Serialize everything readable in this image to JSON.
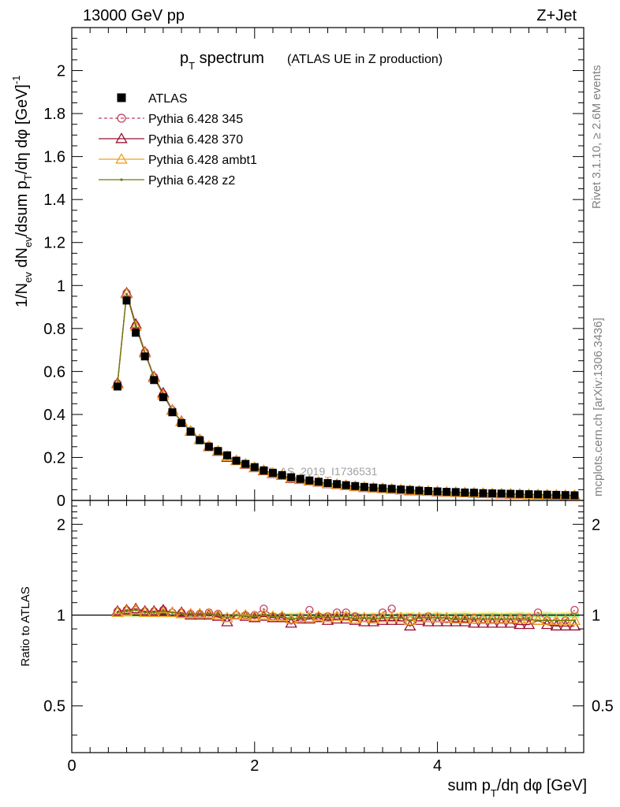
{
  "header": {
    "left": "13000 GeV pp",
    "right": "Z+Jet"
  },
  "side_text": {
    "rivet": "Rivet 3.1.10, ≥ 2.6M events",
    "mcplots": "mcplots.cern.ch [arXiv:1306.3436]"
  },
  "watermark": "ATLAS_2019_I1736531",
  "chart_data": [
    {
      "type": "scatter",
      "panel": "main",
      "title_main": "p",
      "title_sub": "T",
      "title_rest": " spectrum",
      "title_note": "(ATLAS UE in Z production)",
      "ylabel": "1/N_ev dN_ev/dsum p_T/dη dφ  [GeV]^-1",
      "xlim": [
        0,
        5.6
      ],
      "ylim": [
        0,
        2.2
      ],
      "yticks": [
        0,
        0.2,
        0.4,
        0.6,
        0.8,
        1,
        1.2,
        1.4,
        1.6,
        1.8,
        2
      ],
      "ytick_labels": [
        "0",
        "0.2",
        "0.4",
        "0.6",
        "0.8",
        "1",
        "1.2",
        "1.4",
        "1.6",
        "1.8",
        "2"
      ],
      "legend_position": "top-left",
      "x": [
        0.5,
        0.6,
        0.7,
        0.8,
        0.9,
        1.0,
        1.1,
        1.2,
        1.3,
        1.4,
        1.5,
        1.6,
        1.7,
        1.8,
        1.9,
        2.0,
        2.1,
        2.2,
        2.3,
        2.4,
        2.5,
        2.6,
        2.7,
        2.8,
        2.9,
        3.0,
        3.1,
        3.2,
        3.3,
        3.4,
        3.5,
        3.6,
        3.7,
        3.8,
        3.9,
        4.0,
        4.1,
        4.2,
        4.3,
        4.4,
        4.5,
        4.6,
        4.7,
        4.8,
        4.9,
        5.0,
        5.1,
        5.2,
        5.3,
        5.4,
        5.5
      ],
      "series": [
        {
          "name": "ATLAS",
          "color": "#000000",
          "marker": "square",
          "values": [
            0.53,
            0.93,
            0.78,
            0.67,
            0.56,
            0.48,
            0.41,
            0.36,
            0.32,
            0.28,
            0.25,
            0.23,
            0.21,
            0.185,
            0.17,
            0.155,
            0.14,
            0.128,
            0.118,
            0.108,
            0.1,
            0.093,
            0.087,
            0.081,
            0.076,
            0.071,
            0.067,
            0.063,
            0.06,
            0.057,
            0.054,
            0.051,
            0.049,
            0.046,
            0.044,
            0.042,
            0.04,
            0.039,
            0.037,
            0.036,
            0.034,
            0.033,
            0.032,
            0.031,
            0.03,
            0.029,
            0.028,
            0.027,
            0.026,
            0.025,
            0.024
          ]
        },
        {
          "name": "Pythia 6.428 345",
          "color": "#c0405a",
          "marker": "open-circle",
          "line": "dashed",
          "values": [
            0.545,
            0.965,
            0.815,
            0.69,
            0.575,
            0.495,
            0.42,
            0.365,
            0.325,
            0.285,
            0.255,
            0.232,
            0.208,
            0.185,
            0.17,
            0.155,
            0.14,
            0.127,
            0.117,
            0.106,
            0.099,
            0.092,
            0.086,
            0.08,
            0.075,
            0.07,
            0.066,
            0.062,
            0.059,
            0.056,
            0.053,
            0.05,
            0.048,
            0.045,
            0.043,
            0.041,
            0.039,
            0.038,
            0.036,
            0.035,
            0.033,
            0.032,
            0.031,
            0.03,
            0.029,
            0.028,
            0.027,
            0.026,
            0.025,
            0.024,
            0.023
          ]
        },
        {
          "name": "Pythia 6.428 370",
          "color": "#9b1030",
          "marker": "open-triangle",
          "line": "solid",
          "values": [
            0.545,
            0.965,
            0.82,
            0.69,
            0.575,
            0.5,
            0.42,
            0.368,
            0.322,
            0.283,
            0.25,
            0.228,
            0.2,
            0.185,
            0.168,
            0.152,
            0.138,
            0.125,
            0.116,
            0.102,
            0.097,
            0.09,
            0.085,
            0.078,
            0.074,
            0.069,
            0.064,
            0.06,
            0.057,
            0.055,
            0.052,
            0.049,
            0.045,
            0.044,
            0.042,
            0.04,
            0.038,
            0.037,
            0.035,
            0.034,
            0.032,
            0.031,
            0.03,
            0.029,
            0.028,
            0.027,
            0.026,
            0.025,
            0.024,
            0.023,
            0.022
          ]
        },
        {
          "name": "Pythia 6.428 ambt1",
          "color": "#f0a020",
          "marker": "open-triangle",
          "line": "solid",
          "values": [
            0.54,
            0.96,
            0.81,
            0.685,
            0.57,
            0.49,
            0.418,
            0.365,
            0.323,
            0.283,
            0.252,
            0.23,
            0.205,
            0.185,
            0.17,
            0.153,
            0.14,
            0.127,
            0.117,
            0.105,
            0.098,
            0.091,
            0.086,
            0.079,
            0.075,
            0.07,
            0.065,
            0.062,
            0.058,
            0.056,
            0.053,
            0.05,
            0.047,
            0.045,
            0.043,
            0.041,
            0.039,
            0.038,
            0.036,
            0.035,
            0.033,
            0.032,
            0.031,
            0.03,
            0.029,
            0.028,
            0.027,
            0.026,
            0.025,
            0.024,
            0.023
          ]
        },
        {
          "name": "Pythia 6.428 z2",
          "color": "#6b7a10",
          "marker": "dot",
          "line": "solid",
          "values": [
            0.54,
            0.96,
            0.81,
            0.685,
            0.572,
            0.492,
            0.418,
            0.366,
            0.323,
            0.283,
            0.252,
            0.23,
            0.205,
            0.185,
            0.169,
            0.153,
            0.14,
            0.127,
            0.117,
            0.105,
            0.098,
            0.091,
            0.086,
            0.079,
            0.075,
            0.07,
            0.065,
            0.062,
            0.058,
            0.056,
            0.053,
            0.05,
            0.047,
            0.045,
            0.043,
            0.041,
            0.039,
            0.038,
            0.036,
            0.035,
            0.033,
            0.032,
            0.031,
            0.03,
            0.029,
            0.028,
            0.027,
            0.026,
            0.025,
            0.024,
            0.023
          ]
        }
      ]
    },
    {
      "type": "scatter",
      "panel": "ratio",
      "ylabel": "Ratio to ATLAS",
      "xlabel": "sum p_T/dη dφ [GeV]",
      "xlim": [
        0,
        5.6
      ],
      "xticks": [
        0,
        2,
        4
      ],
      "xtick_labels": [
        "0",
        "2",
        "4"
      ],
      "ylim": [
        0.35,
        2.4
      ],
      "yticks": [
        0.5,
        1,
        2
      ],
      "ytick_labels": [
        "0.5",
        "1",
        "2"
      ],
      "scale": "log",
      "band": "ATLAS uncertainty (yellow/green)",
      "x": [
        0.5,
        0.6,
        0.7,
        0.8,
        0.9,
        1.0,
        1.1,
        1.2,
        1.3,
        1.4,
        1.5,
        1.6,
        1.7,
        1.8,
        1.9,
        2.0,
        2.1,
        2.2,
        2.3,
        2.4,
        2.5,
        2.6,
        2.7,
        2.8,
        2.9,
        3.0,
        3.1,
        3.2,
        3.3,
        3.4,
        3.5,
        3.6,
        3.7,
        3.8,
        3.9,
        4.0,
        4.1,
        4.2,
        4.3,
        4.4,
        4.5,
        4.6,
        4.7,
        4.8,
        4.9,
        5.0,
        5.1,
        5.2,
        5.3,
        5.4,
        5.5
      ],
      "series": [
        {
          "name": "Pythia 6.428 345",
          "color": "#c0405a",
          "marker": "open-circle",
          "line": "dashed",
          "values": [
            1.03,
            1.04,
            1.04,
            1.03,
            1.03,
            1.04,
            1.02,
            1.02,
            1.01,
            1.01,
            1.02,
            1.01,
            0.98,
            1.0,
            1.0,
            1.0,
            1.05,
            0.99,
            0.99,
            0.96,
            0.98,
            1.04,
            0.99,
            0.99,
            1.02,
            1.02,
            0.99,
            0.98,
            0.98,
            1.02,
            1.05,
            0.98,
            0.98,
            0.98,
            0.99,
            0.98,
            0.97,
            0.97,
            0.97,
            0.98,
            0.97,
            0.97,
            0.97,
            0.97,
            0.98,
            0.98,
            1.02,
            0.96,
            0.95,
            0.96,
            1.04
          ]
        },
        {
          "name": "Pythia 6.428 370",
          "color": "#9b1030",
          "marker": "open-triangle",
          "line": "solid",
          "values": [
            1.03,
            1.04,
            1.05,
            1.03,
            1.03,
            1.04,
            1.02,
            1.02,
            1.0,
            1.0,
            1.0,
            0.99,
            0.95,
            1.0,
            0.99,
            0.98,
            0.99,
            0.98,
            0.98,
            0.94,
            0.97,
            0.97,
            0.98,
            0.96,
            0.97,
            0.97,
            0.96,
            0.95,
            0.95,
            0.96,
            0.96,
            0.96,
            0.92,
            0.96,
            0.95,
            0.95,
            0.95,
            0.95,
            0.95,
            0.94,
            0.94,
            0.94,
            0.94,
            0.94,
            0.93,
            0.93,
            0.96,
            0.93,
            0.92,
            0.92,
            0.92
          ]
        },
        {
          "name": "Pythia 6.428 ambt1",
          "color": "#f0a020",
          "marker": "open-triangle",
          "line": "solid",
          "values": [
            1.02,
            1.03,
            1.04,
            1.02,
            1.02,
            1.02,
            1.02,
            1.01,
            1.01,
            1.01,
            1.01,
            1.0,
            0.98,
            1.0,
            1.0,
            0.99,
            1.0,
            0.99,
            0.99,
            0.97,
            0.98,
            0.98,
            0.99,
            0.98,
            0.99,
            0.99,
            0.97,
            0.98,
            0.97,
            0.98,
            0.98,
            0.98,
            0.96,
            0.98,
            0.98,
            0.98,
            0.98,
            0.97,
            0.97,
            0.97,
            0.97,
            0.97,
            0.97,
            0.97,
            0.97,
            0.97,
            0.96,
            0.96,
            0.96,
            0.96,
            0.96
          ]
        },
        {
          "name": "Pythia 6.428 z2",
          "color": "#6b7a10",
          "marker": "dot",
          "line": "solid",
          "values": [
            1.02,
            1.03,
            1.04,
            1.02,
            1.02,
            1.03,
            1.02,
            1.01,
            1.01,
            1.01,
            1.01,
            1.0,
            0.98,
            1.0,
            0.99,
            0.99,
            1.0,
            0.99,
            0.99,
            0.97,
            0.98,
            0.98,
            0.99,
            0.98,
            0.99,
            0.99,
            0.97,
            0.98,
            0.97,
            0.98,
            0.98,
            0.98,
            0.96,
            0.98,
            0.98,
            0.98,
            0.98,
            0.97,
            0.97,
            0.97,
            0.97,
            0.97,
            0.97,
            0.97,
            0.97,
            0.97,
            0.96,
            0.96,
            0.96,
            0.96,
            0.96
          ]
        }
      ]
    }
  ]
}
